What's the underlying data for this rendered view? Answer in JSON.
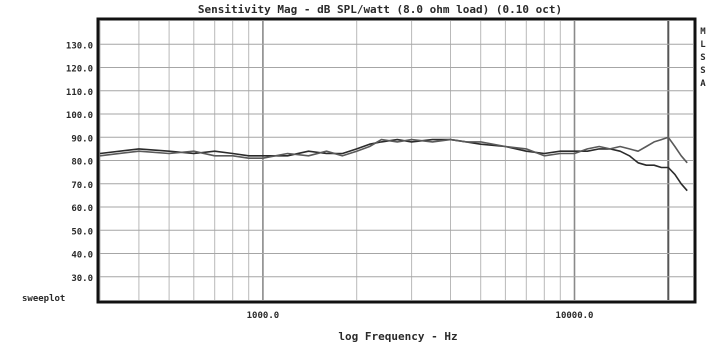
{
  "chart_data": {
    "type": "line",
    "title": "Sensitivity Mag - dB SPL/watt (8.0 ohm load) (0.10 oct)",
    "xlabel": "log Frequency - Hz",
    "ylabel": "",
    "corner_label": "sweeplot",
    "side_letters": [
      "M",
      "L",
      "S",
      "S",
      "A"
    ],
    "x_scale": "log",
    "xlim": [
      300,
      24000
    ],
    "ylim": [
      20,
      140
    ],
    "grid": true,
    "y_ticks": [
      130,
      120,
      110,
      100,
      90,
      80,
      70,
      60,
      50,
      40,
      30
    ],
    "y_tick_labels": [
      "130.0",
      "120.0",
      "110.0",
      "100.0",
      "90.0",
      "80.0",
      "70.0",
      "60.0",
      "50.0",
      "40.0",
      "30.0"
    ],
    "x_tick_labels": [
      {
        "value": 1000,
        "label": "1000.0"
      },
      {
        "value": 10000,
        "label": "10000.0"
      }
    ],
    "series": [
      {
        "color": "#2b2b2b",
        "x": [
          300,
          400,
          500,
          600,
          700,
          800,
          900,
          1000,
          1200,
          1400,
          1600,
          1800,
          2000,
          2200,
          2400,
          2700,
          3000,
          3500,
          4000,
          4500,
          5000,
          6000,
          7000,
          8000,
          9000,
          10000,
          11000,
          12000,
          13000,
          14000,
          15000,
          16000,
          17000,
          18000,
          19000,
          20000,
          21000,
          22000,
          23000
        ],
        "y": [
          83,
          85,
          84,
          83,
          84,
          83,
          82,
          82,
          82,
          84,
          83,
          83,
          85,
          87,
          88,
          89,
          88,
          89,
          89,
          88,
          87,
          86,
          84,
          83,
          84,
          84,
          84,
          85,
          85,
          84,
          82,
          79,
          78,
          78,
          77,
          77,
          74,
          70,
          67
        ]
      },
      {
        "color": "#5a5a5a",
        "x": [
          300,
          400,
          500,
          600,
          700,
          800,
          900,
          1000,
          1200,
          1400,
          1600,
          1800,
          2000,
          2200,
          2400,
          2700,
          3000,
          3500,
          4000,
          4500,
          5000,
          6000,
          7000,
          8000,
          9000,
          10000,
          11000,
          12000,
          13000,
          14000,
          15000,
          16000,
          17000,
          18000,
          19000,
          20000,
          21000,
          22000,
          23000
        ],
        "y": [
          82,
          84,
          83,
          84,
          82,
          82,
          81,
          81,
          83,
          82,
          84,
          82,
          84,
          86,
          89,
          88,
          89,
          88,
          89,
          88,
          88,
          86,
          85,
          82,
          83,
          83,
          85,
          86,
          85,
          86,
          85,
          84,
          86,
          88,
          89,
          90,
          86,
          82,
          79
        ]
      }
    ]
  }
}
